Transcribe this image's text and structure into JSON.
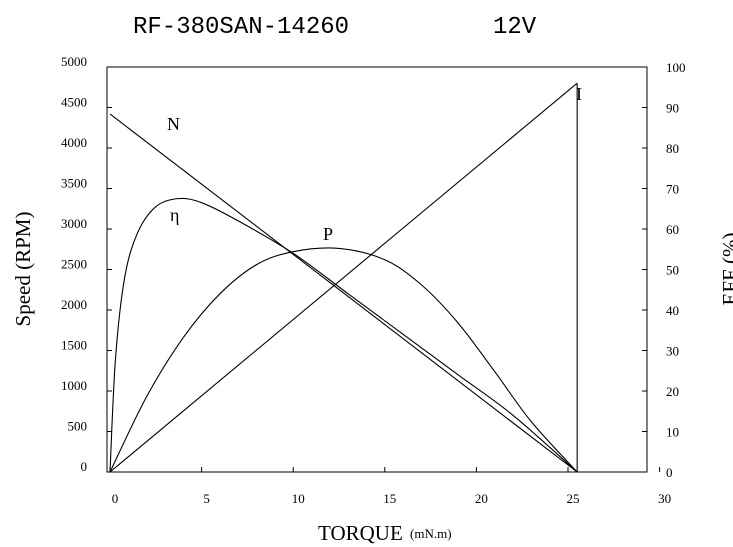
{
  "chart_data": {
    "type": "line",
    "title": "RF-380SAN-14260",
    "subtitle": "12V",
    "xlabel": "TORQUE",
    "xunit": "(mN.m)",
    "ylabel": "Speed (RPM)",
    "y2label": "EFF (%)",
    "xlim": [
      0,
      30
    ],
    "ylim": [
      0,
      5000
    ],
    "y2lim": [
      0,
      100
    ],
    "xticks": [
      0,
      5,
      10,
      15,
      20,
      25,
      30
    ],
    "yticks": [
      0,
      500,
      1000,
      1500,
      2000,
      2500,
      3000,
      3500,
      4000,
      4500,
      5000
    ],
    "y2ticks": [
      0,
      10,
      20,
      30,
      40,
      50,
      60,
      70,
      80,
      90,
      100
    ],
    "grid": false,
    "series": [
      {
        "name": "N",
        "axis": "left",
        "shape": "line",
        "x": [
          0,
          25.5
        ],
        "y": [
          4420,
          0
        ]
      },
      {
        "name": "I",
        "axis": "left",
        "shape": "line",
        "x": [
          0,
          25.5
        ],
        "y": [
          0,
          4800
        ]
      },
      {
        "name": "P",
        "axis": "left",
        "shape": "curve",
        "x": [
          0,
          2,
          4,
          6,
          8,
          10,
          12.5,
          15,
          17,
          19,
          21,
          23,
          25.5
        ],
        "y": [
          0,
          930,
          1660,
          2200,
          2560,
          2720,
          2760,
          2620,
          2310,
          1840,
          1240,
          620,
          0
        ]
      },
      {
        "name": "η",
        "axis": "right",
        "shape": "curve",
        "x": [
          0,
          0.3,
          0.8,
          1.5,
          2.5,
          3.7,
          5,
          7,
          10,
          13,
          16,
          19,
          22,
          25.5
        ],
        "y": [
          0,
          28,
          48,
          59,
          65.5,
          67.5,
          66.5,
          62,
          54,
          44,
          34,
          24,
          14,
          0
        ]
      }
    ]
  }
}
